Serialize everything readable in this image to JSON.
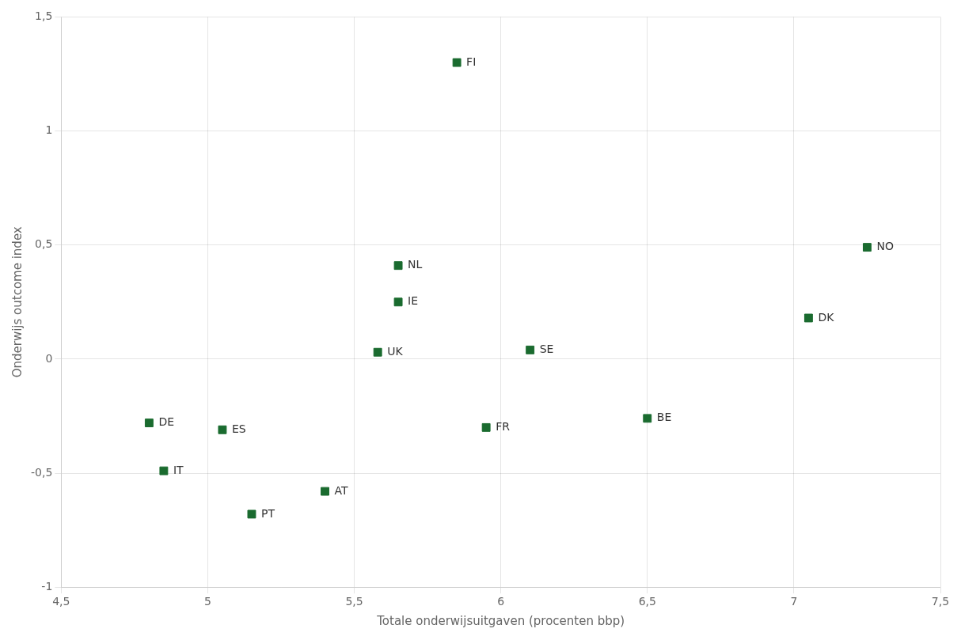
{
  "chart_data": {
    "type": "scatter",
    "xlabel": "Totale onderwijsuitgaven (procenten bbp)",
    "ylabel": "Onderwijs outcome index",
    "x": [
      5.85,
      7.25,
      5.65,
      5.65,
      5.58,
      6.1,
      7.05,
      4.8,
      5.05,
      4.85,
      5.95,
      6.5,
      5.15,
      5.4
    ],
    "values": [
      1.3,
      0.49,
      0.41,
      0.25,
      0.03,
      0.04,
      0.18,
      -0.28,
      -0.31,
      -0.49,
      -0.3,
      -0.26,
      -0.68,
      -0.58
    ],
    "annotations": [
      "FI",
      "NO",
      "NL",
      "IE",
      "UK",
      "SE",
      "DK",
      "DE",
      "ES",
      "IT",
      "FR",
      "BE",
      "PT",
      "AT"
    ],
    "color": "#1a6b2f",
    "marker": "square",
    "xlim": [
      4.5,
      7.5
    ],
    "ylim": [
      -1.0,
      1.5
    ],
    "xticks": [
      {
        "value": 4.5,
        "label": "4,5"
      },
      5,
      {
        "value": 5.5,
        "label": "5,5"
      },
      6,
      {
        "value": 6.5,
        "label": "6,5"
      },
      7,
      {
        "value": 7.5,
        "label": "7,5"
      }
    ],
    "yticks": [
      -1,
      {
        "value": -0.5,
        "label": "-0,5"
      },
      0,
      {
        "value": 0.5,
        "label": "0,5"
      },
      1,
      {
        "value": 1.5,
        "label": "1,5"
      }
    ],
    "grid": true
  }
}
